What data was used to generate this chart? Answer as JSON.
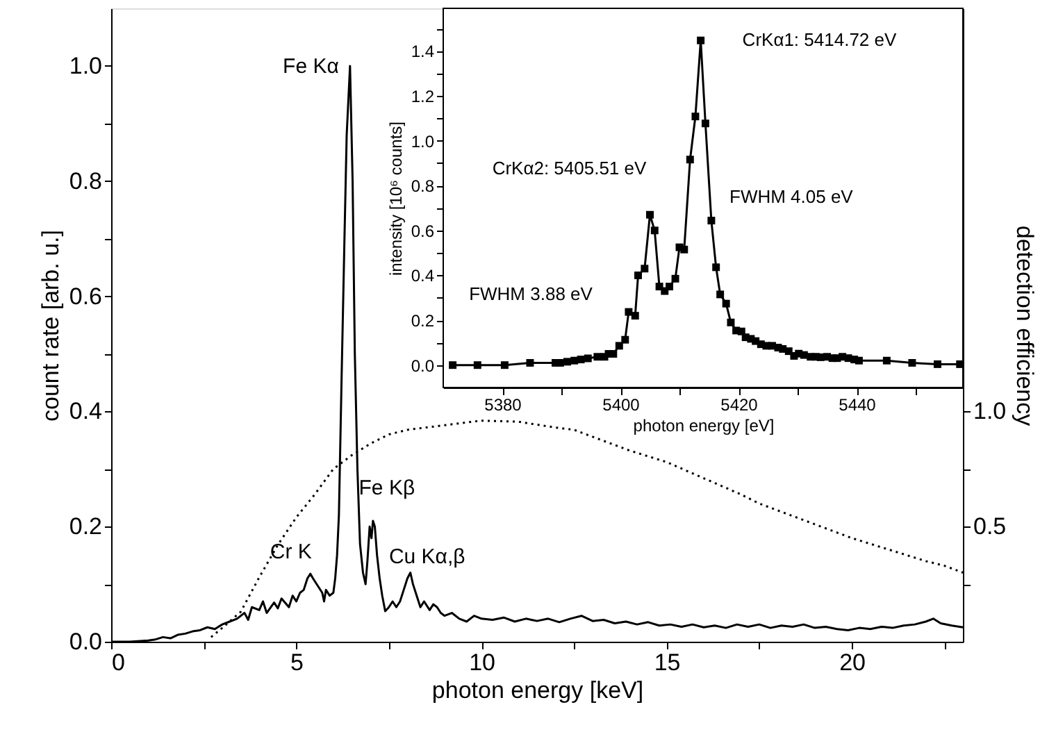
{
  "chart_data": [
    {
      "type": "line",
      "xlabel": "photon energy [keV]",
      "ylabel": "count rate [arb. u.]",
      "y2label": "detection efficiency",
      "xlim": [
        0,
        23
      ],
      "ylim": [
        0,
        1.1
      ],
      "y2lim": [
        0,
        2.75
      ],
      "xticks": [
        0,
        {
          "value": 2.5,
          "label": null
        },
        5,
        {
          "value": 7.5,
          "label": null
        },
        10,
        {
          "value": 12.5,
          "label": null
        },
        15,
        {
          "value": 17.5,
          "label": null
        },
        20,
        {
          "value": 22.5,
          "label": null
        }
      ],
      "yticks": [
        {
          "value": 0,
          "label": "0.0"
        },
        {
          "value": 0.1,
          "label": null
        },
        0.2,
        {
          "value": 0.3,
          "label": null
        },
        0.4,
        {
          "value": 0.5,
          "label": null
        },
        0.6,
        {
          "value": 0.7,
          "label": null
        },
        0.8,
        {
          "value": 0.9,
          "label": null
        },
        {
          "value": 1,
          "label": "1.0"
        }
      ],
      "y2ticks": [
        {
          "value": 0.25,
          "label": null
        },
        0.5,
        {
          "value": 0.75,
          "label": null
        },
        {
          "value": 1,
          "label": "1.0"
        }
      ],
      "grid": false,
      "series": [
        {
          "color": "#000000",
          "line_style": "solid",
          "x": [
            0,
            0.5,
            1.0,
            1.2,
            1.4,
            1.6,
            1.8,
            2.0,
            2.2,
            2.4,
            2.6,
            2.8,
            3.0,
            3.2,
            3.4,
            3.6,
            3.7,
            3.8,
            4.0,
            4.1,
            4.2,
            4.4,
            4.5,
            4.6,
            4.8,
            4.9,
            5.0,
            5.1,
            5.2,
            5.3,
            5.38,
            5.45,
            5.5,
            5.6,
            5.7,
            5.75,
            5.8,
            5.9,
            6.0,
            6.05,
            6.1,
            6.15,
            6.22,
            6.3,
            6.36,
            6.45,
            6.52,
            6.58,
            6.65,
            6.72,
            6.8,
            6.87,
            6.92,
            6.98,
            7.03,
            7.07,
            7.12,
            7.18,
            7.25,
            7.32,
            7.4,
            7.5,
            7.6,
            7.7,
            7.8,
            7.9,
            8.0,
            8.08,
            8.15,
            8.25,
            8.35,
            8.45,
            8.6,
            8.7,
            8.8,
            8.9,
            9.0,
            9.2,
            9.4,
            9.6,
            9.8,
            10.0,
            10.3,
            10.6,
            10.9,
            11.2,
            11.5,
            11.8,
            12.1,
            12.4,
            12.7,
            13.0,
            13.3,
            13.6,
            13.9,
            14.2,
            14.5,
            14.8,
            15.1,
            15.4,
            15.7,
            16.0,
            16.3,
            16.6,
            16.9,
            17.2,
            17.5,
            17.8,
            18.1,
            18.4,
            18.7,
            19.0,
            19.3,
            19.6,
            19.9,
            20.2,
            20.5,
            20.8,
            21.1,
            21.4,
            21.7,
            22.0,
            22.2,
            22.4,
            22.7,
            23.0
          ],
          "values": [
            0,
            0,
            0.002,
            0.004,
            0.008,
            0.006,
            0.012,
            0.014,
            0.018,
            0.02,
            0.025,
            0.022,
            0.03,
            0.035,
            0.04,
            0.05,
            0.038,
            0.06,
            0.055,
            0.07,
            0.05,
            0.068,
            0.058,
            0.075,
            0.06,
            0.08,
            0.07,
            0.085,
            0.09,
            0.11,
            0.118,
            0.11,
            0.105,
            0.095,
            0.085,
            0.07,
            0.09,
            0.08,
            0.085,
            0.11,
            0.15,
            0.22,
            0.45,
            0.7,
            0.88,
            1.0,
            0.8,
            0.5,
            0.3,
            0.17,
            0.12,
            0.1,
            0.14,
            0.2,
            0.18,
            0.21,
            0.2,
            0.15,
            0.11,
            0.08,
            0.053,
            0.06,
            0.07,
            0.06,
            0.07,
            0.09,
            0.11,
            0.12,
            0.1,
            0.08,
            0.06,
            0.07,
            0.055,
            0.065,
            0.06,
            0.05,
            0.045,
            0.05,
            0.04,
            0.035,
            0.045,
            0.04,
            0.038,
            0.042,
            0.035,
            0.04,
            0.036,
            0.04,
            0.034,
            0.04,
            0.045,
            0.036,
            0.038,
            0.032,
            0.035,
            0.03,
            0.034,
            0.028,
            0.03,
            0.026,
            0.03,
            0.025,
            0.028,
            0.024,
            0.03,
            0.026,
            0.03,
            0.024,
            0.028,
            0.026,
            0.03,
            0.024,
            0.026,
            0.022,
            0.02,
            0.024,
            0.022,
            0.026,
            0.024,
            0.028,
            0.03,
            0.035,
            0.04,
            0.032,
            0.028,
            0.025
          ]
        },
        {
          "color": "#000000",
          "line_style": "dotted",
          "axis": "y2",
          "x": [
            2.7,
            3.0,
            3.5,
            4.0,
            4.5,
            5.0,
            5.5,
            6.0,
            6.5,
            7.0,
            7.5,
            8,
            9,
            10,
            11,
            12,
            12.5,
            13,
            14,
            15,
            16,
            17,
            17.5,
            18,
            19,
            20,
            21,
            22,
            22.5,
            23
          ],
          "values": [
            0.02,
            0.06,
            0.13,
            0.28,
            0.42,
            0.54,
            0.64,
            0.75,
            0.81,
            0.86,
            0.9,
            0.92,
            0.94,
            0.96,
            0.955,
            0.93,
            0.92,
            0.89,
            0.83,
            0.78,
            0.71,
            0.64,
            0.6,
            0.57,
            0.51,
            0.45,
            0.4,
            0.35,
            0.33,
            0.3
          ]
        }
      ],
      "annotations": [
        {
          "text": "Fe Kα",
          "x": 6.45,
          "y": 1.0
        },
        {
          "text": "Cr K",
          "x": 5.38,
          "y": 0.118
        },
        {
          "text": "Fe Kβ",
          "x": 7.07,
          "y": 0.21
        },
        {
          "text": "Cu Kα,β",
          "x": 8.08,
          "y": 0.12
        }
      ]
    },
    {
      "type": "line",
      "xlabel": "photon energy [eV]",
      "ylabel": "intensity [10⁶ counts]",
      "marker": "square",
      "grid": false,
      "xlim": [
        5370,
        5458
      ],
      "ylim": [
        -0.1,
        1.59
      ],
      "xticks": [
        5380,
        {
          "value": 5390,
          "label": null
        },
        5400,
        {
          "value": 5410,
          "label": null
        },
        5420,
        {
          "value": 5430,
          "label": null
        },
        5440,
        {
          "value": 5450,
          "label": null
        }
      ],
      "yticks": [
        {
          "value": 0,
          "label": "0.0"
        },
        {
          "value": 0.1,
          "label": null
        },
        0.2,
        {
          "value": 0.3,
          "label": null
        },
        0.4,
        {
          "value": 0.5,
          "label": null
        },
        0.6,
        {
          "value": 0.7,
          "label": null
        },
        0.8,
        {
          "value": 0.9,
          "label": null
        },
        {
          "value": 1,
          "label": "1.0"
        },
        {
          "value": 1.1,
          "label": null
        },
        1.2,
        {
          "value": 1.3,
          "label": null
        },
        1.4,
        {
          "value": 1.5,
          "label": null
        }
      ],
      "series": [
        {
          "color": "#000000",
          "line_style": "solid",
          "x": [
            5371.6,
            5375.8,
            5380.4,
            5384.7,
            5389.0,
            5389.8,
            5391.0,
            5392.2,
            5393.3,
            5394.5,
            5396.1,
            5397.3,
            5398.0,
            5398.8,
            5399.8,
            5400.8,
            5401.4,
            5402.5,
            5403.0,
            5404.1,
            5405.0,
            5405.8,
            5406.6,
            5407.5,
            5408.3,
            5409.3,
            5410.0,
            5410.8,
            5411.8,
            5412.7,
            5413.6,
            5414.4,
            5415.4,
            5416.2,
            5416.9,
            5417.9,
            5418.7,
            5419.6,
            5420.5,
            5421.2,
            5422.1,
            5422.9,
            5423.8,
            5424.7,
            5425.7,
            5426.7,
            5427.5,
            5428.5,
            5429.4,
            5430.2,
            5431.1,
            5432.2,
            5433.1,
            5433.9,
            5435.0,
            5435.9,
            5436.7,
            5437.6,
            5438.6,
            5439.6,
            5440.4,
            5445.1,
            5449.4,
            5453.7,
            5457.5
          ],
          "values": [
            0.0,
            0.0,
            0.0,
            0.01,
            0.01,
            0.01,
            0.015,
            0.02,
            0.025,
            0.03,
            0.037,
            0.037,
            0.05,
            0.05,
            0.086,
            0.113,
            0.237,
            0.22,
            0.4,
            0.43,
            0.67,
            0.6,
            0.35,
            0.33,
            0.35,
            0.385,
            0.525,
            0.515,
            0.916,
            1.108,
            1.447,
            1.077,
            0.644,
            0.436,
            0.315,
            0.274,
            0.19,
            0.154,
            0.15,
            0.124,
            0.117,
            0.107,
            0.093,
            0.086,
            0.086,
            0.078,
            0.072,
            0.062,
            0.041,
            0.051,
            0.045,
            0.037,
            0.037,
            0.035,
            0.037,
            0.031,
            0.031,
            0.037,
            0.031,
            0.025,
            0.02,
            0.02,
            0.01,
            0.004,
            0.004
          ]
        }
      ],
      "annotations": [
        {
          "text": "CrKα1: 5414.72 eV",
          "x": 5413.6,
          "y": 1.447
        },
        {
          "text": "CrKα2: 5405.51 eV",
          "x": 5405.0,
          "y": 0.67
        },
        "FWHM 4.05 eV",
        "FWHM 3.88 eV"
      ]
    }
  ]
}
